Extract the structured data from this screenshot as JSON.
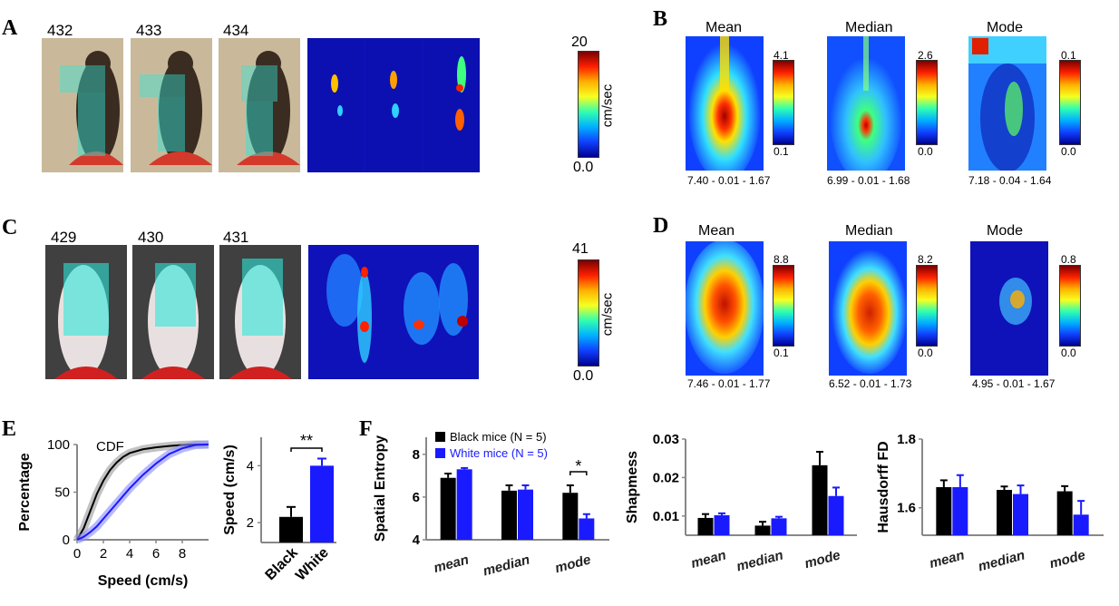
{
  "panels": {
    "A": {
      "letter": "A",
      "frames": [
        "432",
        "433",
        "434"
      ],
      "colorbar": {
        "max": "20",
        "min": "0.0",
        "unit": "cm/sec"
      }
    },
    "B": {
      "letter": "B",
      "maps": [
        {
          "title": "Mean",
          "cmax": "4.1",
          "cmin": "0.1",
          "caption": "7.40 - 0.01 - 1.67"
        },
        {
          "title": "Median",
          "cmax": "2.6",
          "cmin": "0.0",
          "caption": "6.99 - 0.01 - 1.68"
        },
        {
          "title": "Mode",
          "cmax": "0.1",
          "cmin": "0.0",
          "caption": "7.18 - 0.04 - 1.64"
        }
      ]
    },
    "C": {
      "letter": "C",
      "frames": [
        "429",
        "430",
        "431"
      ],
      "colorbar": {
        "max": "41",
        "min": "0.0",
        "unit": "cm/sec"
      }
    },
    "D": {
      "letter": "D",
      "maps": [
        {
          "title": "Mean",
          "cmax": "8.8",
          "cmin": "0.1",
          "caption": "7.46 - 0.01 - 1.77"
        },
        {
          "title": "Median",
          "cmax": "8.2",
          "cmin": "0.0",
          "caption": "6.52 - 0.01 - 1.73"
        },
        {
          "title": "Mode",
          "cmax": "0.8",
          "cmin": "0.0",
          "caption": "4.95 - 0.01 - 1.67"
        }
      ]
    },
    "E": {
      "letter": "E"
    },
    "F": {
      "letter": "F"
    }
  },
  "colors": {
    "black_series": "#000000",
    "white_series": "#1a1aff",
    "cdf_black_band": "#9a9a9a",
    "cdf_white_band": "#8a8aff"
  },
  "chart_data": [
    {
      "type": "line",
      "id": "E-cdf",
      "title": "CDF",
      "xlabel": "Speed (cm/s)",
      "ylabel": "Percentage",
      "xlim": [
        0,
        10
      ],
      "ylim": [
        0,
        100
      ],
      "xticks": [
        "0",
        "2",
        "4",
        "6",
        "8"
      ],
      "yticks": [
        "0",
        "50",
        "100"
      ],
      "series": [
        {
          "x": [
            0,
            0.5,
            1,
            1.5,
            2,
            2.5,
            3,
            3.5,
            4,
            5,
            6,
            7,
            8,
            9,
            10
          ],
          "y": [
            0,
            12,
            30,
            48,
            62,
            73,
            81,
            87,
            91,
            95,
            97,
            98.5,
            99.5,
            100,
            100
          ],
          "color": "black"
        },
        {
          "x": [
            0,
            0.5,
            1,
            1.5,
            2,
            2.5,
            3,
            3.5,
            4,
            5,
            6,
            7,
            8,
            9,
            10
          ],
          "y": [
            0,
            3,
            8,
            14,
            22,
            30,
            38,
            46,
            54,
            68,
            80,
            90,
            96,
            99.5,
            100
          ],
          "color": "blue"
        }
      ]
    },
    {
      "type": "bar",
      "id": "E-speed",
      "ylabel": "Speed (cm/s)",
      "categories": [
        "Black",
        "White"
      ],
      "values": [
        2.2,
        4.0
      ],
      "errors": [
        0.35,
        0.25
      ],
      "ylim": [
        1.3,
        5
      ],
      "yticks": [
        "2",
        "4"
      ],
      "significance": "**"
    },
    {
      "type": "bar",
      "id": "F-entropy",
      "ylabel": "Spatial Entropy",
      "categories": [
        "mean",
        "median",
        "mode"
      ],
      "legend": [
        "Black mice (N = 5)",
        "White mice (N = 5)"
      ],
      "series": [
        {
          "values": [
            6.9,
            6.3,
            6.2
          ],
          "errors": [
            0.2,
            0.25,
            0.35
          ]
        },
        {
          "values": [
            7.3,
            6.35,
            5.0
          ],
          "errors": [
            0.06,
            0.2,
            0.2
          ]
        }
      ],
      "ylim": [
        4,
        8.8
      ],
      "yticks": [
        "4",
        "6",
        "8"
      ],
      "significance": {
        "category": "mode",
        "label": "*"
      }
    },
    {
      "type": "bar",
      "id": "F-sharpness",
      "ylabel": "Shapmess",
      "categories": [
        "mean",
        "median",
        "mode"
      ],
      "series": [
        {
          "values": [
            0.0095,
            0.0075,
            0.0232
          ],
          "errors": [
            0.001,
            0.001,
            0.0035
          ]
        },
        {
          "values": [
            0.0102,
            0.0094,
            0.0152
          ],
          "errors": [
            0.0005,
            0.0004,
            0.0022
          ]
        }
      ],
      "ylim": [
        0.005,
        0.03
      ],
      "yticks": [
        "0.01",
        "0.02",
        "0.03"
      ]
    },
    {
      "type": "bar",
      "id": "F-hausdorff",
      "ylabel": "Hausdorff FD",
      "categories": [
        "mean",
        "median",
        "mode"
      ],
      "series": [
        {
          "values": [
            1.66,
            1.652,
            1.648
          ],
          "errors": [
            0.02,
            0.01,
            0.015
          ]
        },
        {
          "values": [
            1.66,
            1.64,
            1.58
          ],
          "errors": [
            0.035,
            0.025,
            0.04
          ]
        }
      ],
      "ylim": [
        1.52,
        1.8
      ],
      "yticks": [
        "1.6",
        "1.8"
      ]
    }
  ]
}
